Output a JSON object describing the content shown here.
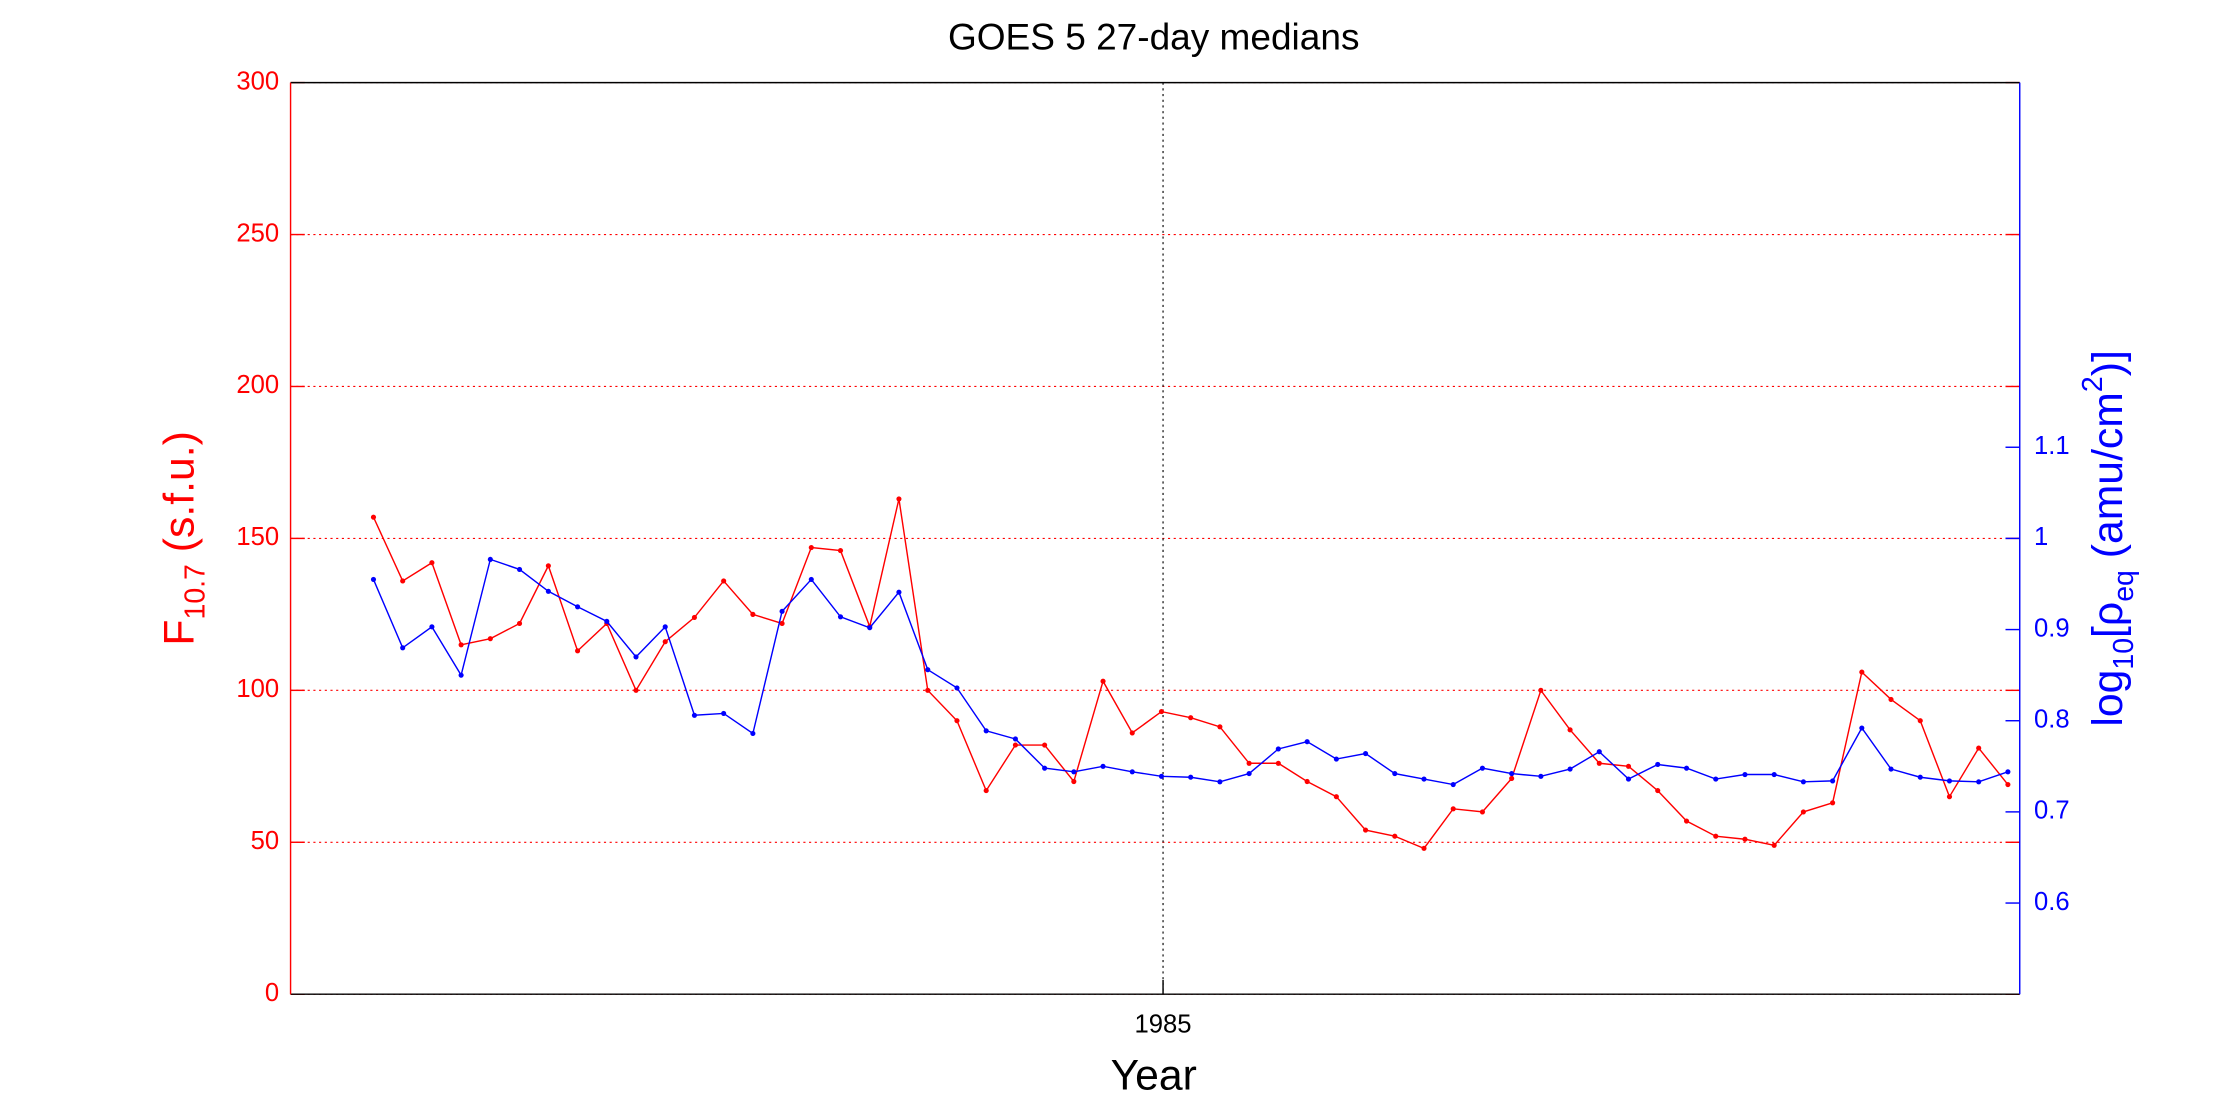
{
  "chart_data": {
    "type": "line",
    "title": "GOES 5 27-day medians",
    "x_label": "Year",
    "y_label_parts": [
      "F",
      "10.7",
      " (s.f.u.)"
    ],
    "y2_label_parts": [
      "log",
      "10",
      "[ρ",
      "eq",
      " (amu/cm",
      "2",
      ")]"
    ],
    "xlim": [
      1982.79,
      1987.17
    ],
    "xticks": [
      1985
    ],
    "ylim": [
      0,
      300
    ],
    "yticks": [
      0,
      50,
      100,
      150,
      200,
      250,
      300
    ],
    "y2lim": [
      0.5,
      1.5
    ],
    "y2ticks": [
      0.6,
      0.7,
      0.8,
      0.9,
      1,
      1.1
    ],
    "grid": true,
    "x": [
      1983.0,
      1983.074,
      1983.148,
      1983.222,
      1983.296,
      1983.37,
      1983.443,
      1983.517,
      1983.591,
      1983.665,
      1983.739,
      1983.813,
      1983.887,
      1983.961,
      1984.035,
      1984.109,
      1984.183,
      1984.257,
      1984.331,
      1984.404,
      1984.478,
      1984.552,
      1984.626,
      1984.7,
      1984.774,
      1984.848,
      1984.922,
      1984.996,
      1985.07,
      1985.144,
      1985.218,
      1985.292,
      1985.365,
      1985.439,
      1985.513,
      1985.587,
      1985.661,
      1985.735,
      1985.809,
      1985.883,
      1985.957,
      1986.031,
      1986.105,
      1986.179,
      1986.253,
      1986.326,
      1986.4,
      1986.474,
      1986.548,
      1986.622,
      1986.696,
      1986.77,
      1986.844,
      1986.918,
      1986.992,
      1987.066,
      1987.14
    ],
    "series": [
      {
        "color": "#ff0000",
        "axis": "y",
        "values": [
          157,
          136,
          142,
          115,
          117,
          122,
          141,
          113,
          122,
          100,
          116,
          124,
          136,
          125,
          122,
          147,
          146,
          121,
          163,
          100,
          90,
          67,
          82,
          82,
          70,
          103,
          86,
          93,
          91,
          88,
          76,
          76,
          70,
          65,
          54,
          52,
          48,
          61,
          60,
          71,
          100,
          87,
          76,
          75,
          67,
          57,
          52,
          51,
          49,
          60,
          63,
          106,
          97,
          90,
          65,
          81,
          69
        ]
      },
      {
        "color": "#0000ff",
        "axis": "y2",
        "values": [
          0.955,
          0.88,
          0.903,
          0.85,
          0.977,
          0.966,
          0.942,
          0.925,
          0.909,
          0.87,
          0.903,
          0.806,
          0.808,
          0.786,
          0.92,
          0.955,
          0.914,
          0.902,
          0.941,
          0.856,
          0.836,
          0.789,
          0.78,
          0.748,
          0.744,
          0.75,
          0.744,
          0.739,
          0.738,
          0.733,
          0.742,
          0.769,
          0.777,
          0.758,
          0.764,
          0.742,
          0.736,
          0.73,
          0.748,
          0.742,
          0.739,
          0.747,
          0.766,
          0.736,
          0.752,
          0.748,
          0.736,
          0.741,
          0.741,
          0.733,
          0.734,
          0.792,
          0.747,
          0.738,
          0.734,
          0.733,
          0.744
        ]
      }
    ]
  }
}
